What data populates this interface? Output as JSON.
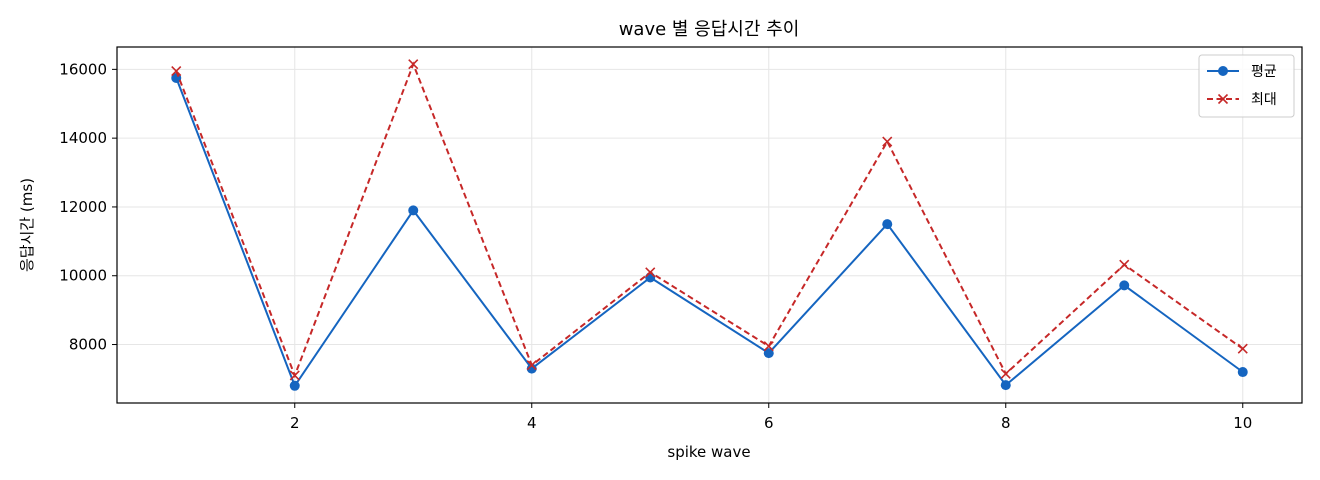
{
  "chart_data": {
    "type": "line",
    "title": "wave 별 응답시간 추이",
    "xlabel": "spike wave",
    "ylabel": "응답시간 (ms)",
    "xlim": [
      0.5,
      10.5
    ],
    "ylim": [
      6300,
      16650
    ],
    "xticks": [
      2,
      4,
      6,
      8,
      10
    ],
    "yticks": [
      8000,
      10000,
      12000,
      14000,
      16000
    ],
    "grid": true,
    "legend_position": "top-right",
    "x": [
      1,
      2,
      3,
      4,
      5,
      6,
      7,
      8,
      9,
      10
    ],
    "series": [
      {
        "name": "평균",
        "color": "#1565c0",
        "marker": "circle",
        "style": "solid",
        "values": [
          15750,
          6800,
          11900,
          7300,
          9950,
          7750,
          11500,
          6820,
          9720,
          7200
        ]
      },
      {
        "name": "최대",
        "color": "#c62828",
        "marker": "x",
        "style": "dashed",
        "values": [
          15950,
          7100,
          16150,
          7400,
          10100,
          7950,
          13900,
          7150,
          10320,
          7880
        ]
      }
    ]
  }
}
